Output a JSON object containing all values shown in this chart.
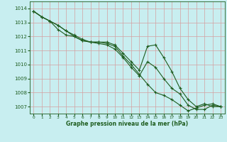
{
  "background_color": "#c8eef0",
  "grid_color": "#aad4d8",
  "line_color": "#1e5c1e",
  "xlabel": "Graphe pression niveau de la mer (hPa)",
  "xlim": [
    -0.5,
    23.5
  ],
  "ylim": [
    1006.5,
    1014.5
  ],
  "yticks": [
    1007,
    1008,
    1009,
    1010,
    1011,
    1012,
    1013,
    1014
  ],
  "xticks": [
    0,
    1,
    2,
    3,
    4,
    5,
    6,
    7,
    8,
    9,
    10,
    11,
    12,
    13,
    14,
    15,
    16,
    17,
    18,
    19,
    20,
    21,
    22,
    23
  ],
  "series": [
    [
      1013.8,
      1013.4,
      1013.1,
      1012.8,
      1012.4,
      1012.1,
      1011.8,
      1011.6,
      1011.6,
      1011.6,
      1011.4,
      1010.8,
      1010.2,
      1009.6,
      1011.3,
      1011.4,
      1010.5,
      1009.5,
      1008.3,
      1007.5,
      1007.0,
      1007.2,
      1007.0,
      1007.0
    ],
    [
      1013.8,
      1013.4,
      1013.1,
      1012.8,
      1012.4,
      1012.0,
      1011.7,
      1011.6,
      1011.5,
      1011.4,
      1011.1,
      1010.5,
      1009.8,
      1009.2,
      1010.2,
      1009.8,
      1009.0,
      1008.3,
      1007.9,
      1007.1,
      1006.8,
      1006.8,
      1007.1,
      1007.0
    ],
    [
      1013.8,
      1013.4,
      1013.1,
      1012.5,
      1012.1,
      1012.0,
      1011.7,
      1011.6,
      1011.6,
      1011.5,
      1011.3,
      1010.6,
      1010.0,
      1009.3,
      1008.6,
      1008.0,
      1007.8,
      1007.5,
      1007.1,
      1006.7,
      1006.9,
      1007.1,
      1007.2,
      1007.0
    ]
  ]
}
